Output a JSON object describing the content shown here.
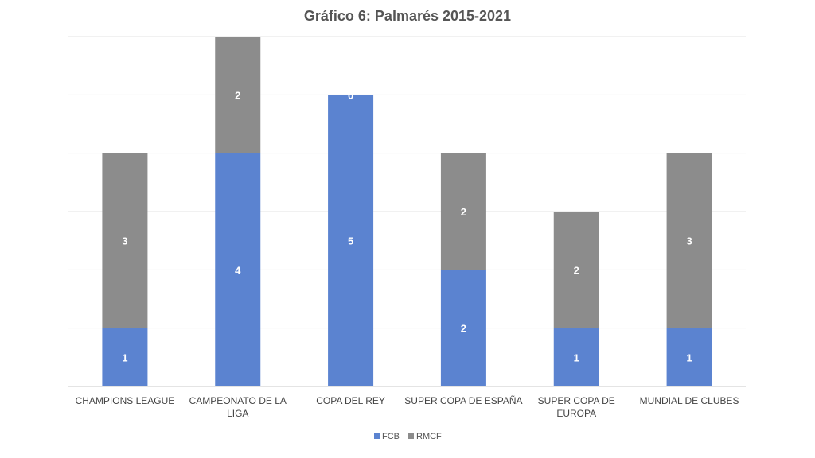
{
  "chart_data": {
    "type": "bar",
    "stacked": true,
    "title": "Gráfico 6: Palmarés 2015-2021",
    "categories": [
      [
        "CHAMPIONS LEAGUE"
      ],
      [
        "CAMPEONATO DE LA",
        "LIGA"
      ],
      [
        "COPA DEL REY"
      ],
      [
        "SUPER COPA DE ESPAÑA"
      ],
      [
        "SUPER COPA DE",
        "EUROPA"
      ],
      [
        "MUNDIAL DE CLUBES"
      ]
    ],
    "series": [
      {
        "name": "FCB",
        "color": "#5B83D0",
        "values": [
          1,
          4,
          5,
          2,
          1,
          1
        ]
      },
      {
        "name": "RMCF",
        "color": "#8C8C8C",
        "values": [
          3,
          2,
          0,
          2,
          2,
          3
        ]
      }
    ],
    "ylim": [
      0,
      6
    ],
    "grid": true,
    "legend": "bottom-center",
    "xlabel": "",
    "ylabel": ""
  }
}
